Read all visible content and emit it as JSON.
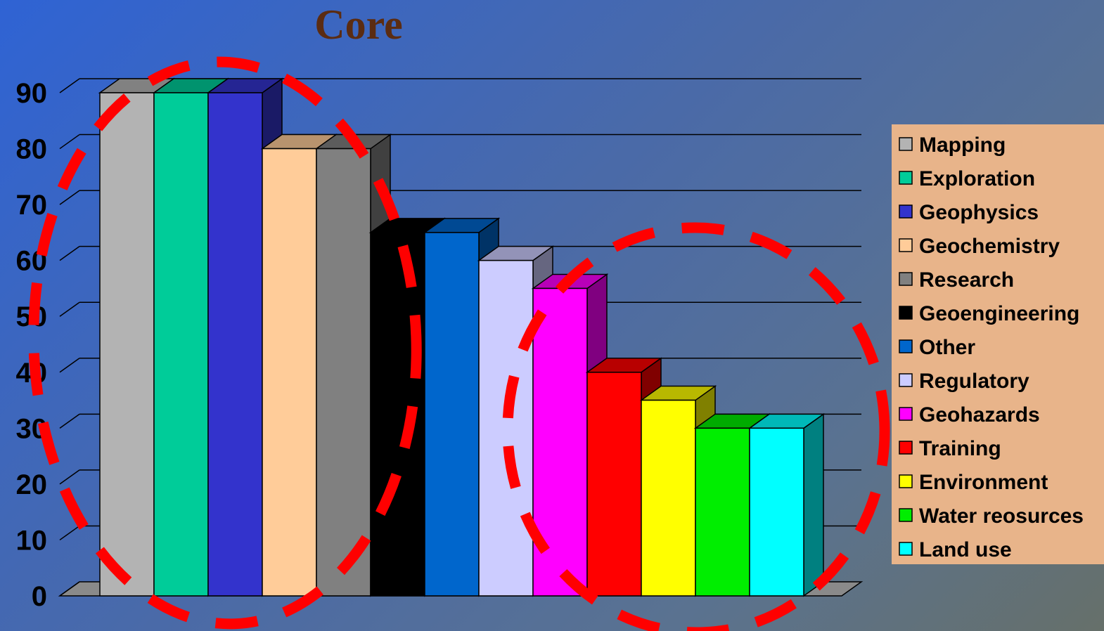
{
  "chart_data": {
    "type": "bar",
    "title": "Core",
    "categories": [
      "Mapping",
      "Exploration",
      "Geophysics",
      "Geochemistry",
      "Research",
      "Geoengineering",
      "Other",
      "Regulatory",
      "Geohazards",
      "Training",
      "Environment",
      "Water reosurces",
      "Land use"
    ],
    "values": [
      90,
      90,
      90,
      80,
      80,
      65,
      65,
      60,
      55,
      40,
      35,
      30,
      30
    ],
    "colors": [
      "#b3b3b3",
      "#00cc99",
      "#3333cc",
      "#ffcc99",
      "#808080",
      "#000000",
      "#0066cc",
      "#ccccff",
      "#ff00ff",
      "#ff0000",
      "#ffff00",
      "#00ee00",
      "#00ffff"
    ],
    "yticks": [
      0,
      10,
      20,
      30,
      40,
      50,
      60,
      70,
      80,
      90
    ],
    "ylim": [
      0,
      90
    ],
    "grid": true,
    "three_d": true,
    "legend_position": "right",
    "legend_background": "#e8b48a",
    "annotations": [
      {
        "shape": "dashed-ellipse",
        "color": "#ff0000",
        "encloses": [
          "Mapping",
          "Exploration",
          "Geophysics",
          "Geochemistry",
          "Research"
        ]
      },
      {
        "shape": "dashed-ellipse",
        "color": "#ff0000",
        "encloses": [
          "Geohazards",
          "Training",
          "Environment",
          "Water reosurces",
          "Land use"
        ]
      }
    ]
  }
}
